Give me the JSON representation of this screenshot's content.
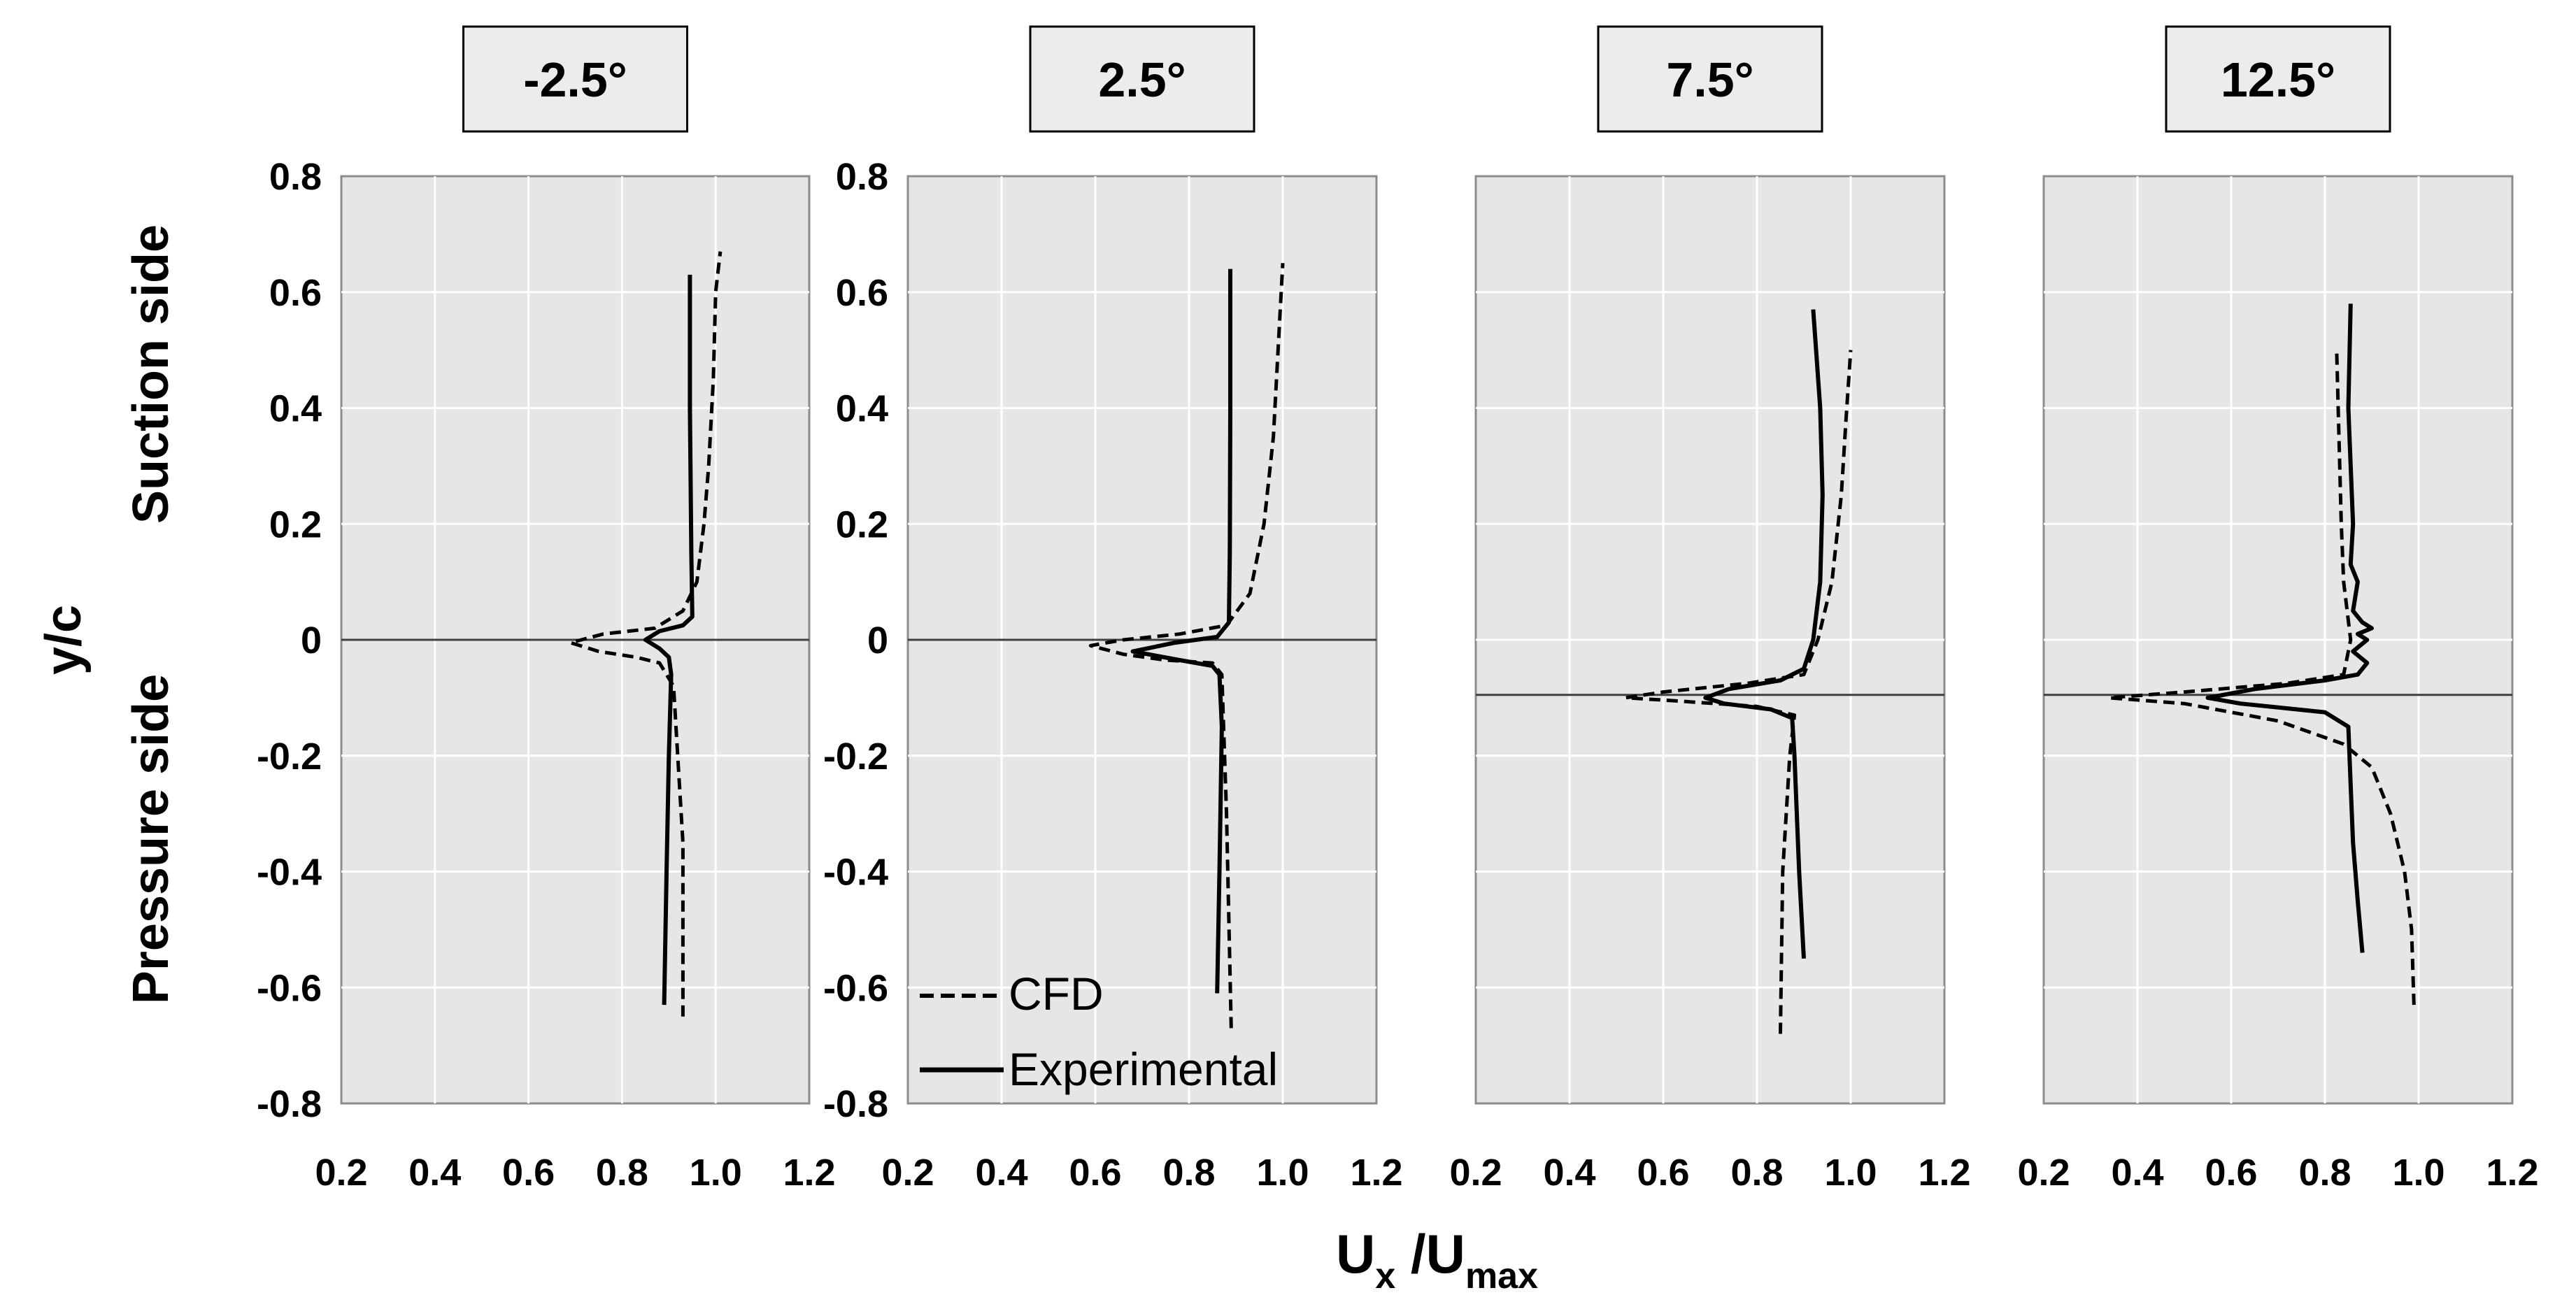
{
  "figure": {
    "xlabel_main": "U",
    "xlabel_sub1": "x",
    "xlabel_sep": " /U",
    "xlabel_sub2": "max",
    "ylabel": "y/c",
    "suction_label": "Suction side",
    "pressure_label": "Pressure side",
    "legend": {
      "cfd": "CFD",
      "exp": "Experimental"
    },
    "colors": {
      "plot_bg": "#e6e6e6",
      "grid": "#ffffff",
      "line": "#000000",
      "title_box": "#ececec",
      "frame": "#8c8c8c"
    }
  },
  "chart_data": [
    {
      "type": "line",
      "title": "-2.5°",
      "xlabel": "Ux /Umax",
      "ylabel": "y/c",
      "xlim": [
        0.2,
        1.2
      ],
      "ylim": [
        -0.8,
        0.8
      ],
      "xticks": [
        "0.2",
        "0.4",
        "0.6",
        "0.8",
        "1.0",
        "1.2"
      ],
      "yticks": [
        "0.8",
        "0.6",
        "0.4",
        "0.2",
        "0",
        "-0.2",
        "-0.4",
        "-0.6",
        "-0.8"
      ],
      "wake_line_y": 0.0,
      "series": [
        {
          "name": "CFD",
          "style": "dashed",
          "x": [
            0.93,
            0.93,
            0.91,
            0.88,
            0.83,
            0.75,
            0.69,
            0.76,
            0.87,
            0.93,
            0.96,
            0.975,
            0.985,
            0.995,
            1.0,
            1.01
          ],
          "y": [
            -0.65,
            -0.35,
            -0.08,
            -0.04,
            -0.03,
            -0.02,
            -0.005,
            0.01,
            0.02,
            0.05,
            0.1,
            0.2,
            0.3,
            0.45,
            0.6,
            0.67
          ]
        },
        {
          "name": "Experimental",
          "style": "solid",
          "x": [
            0.89,
            0.895,
            0.9,
            0.905,
            0.9,
            0.88,
            0.85,
            0.88,
            0.93,
            0.95,
            0.948,
            0.945,
            0.945
          ],
          "y": [
            -0.63,
            -0.4,
            -0.2,
            -0.06,
            -0.03,
            -0.015,
            0.0,
            0.015,
            0.025,
            0.04,
            0.15,
            0.4,
            0.63
          ]
        }
      ]
    },
    {
      "type": "line",
      "title": "2.5°",
      "xlabel": "Ux /Umax",
      "ylabel": "y/c",
      "xlim": [
        0.2,
        1.2
      ],
      "ylim": [
        -0.8,
        0.8
      ],
      "xticks": [
        "0.2",
        "0.4",
        "0.6",
        "0.8",
        "1.0",
        "1.2"
      ],
      "yticks": [
        "0.8",
        "0.6",
        "0.4",
        "0.2",
        "0",
        "-0.2",
        "-0.4",
        "-0.6",
        "-0.8"
      ],
      "wake_line_y": 0.0,
      "legend": [
        "CFD",
        "Experimental"
      ],
      "legend_position": "bottom-left",
      "series": [
        {
          "name": "CFD",
          "style": "dashed",
          "x": [
            0.89,
            0.88,
            0.87,
            0.85,
            0.75,
            0.66,
            0.59,
            0.66,
            0.78,
            0.88,
            0.93,
            0.96,
            0.98,
            0.99,
            1.0
          ],
          "y": [
            -0.67,
            -0.3,
            -0.06,
            -0.04,
            -0.035,
            -0.025,
            -0.01,
            0.0,
            0.01,
            0.025,
            0.08,
            0.2,
            0.35,
            0.5,
            0.65
          ]
        },
        {
          "name": "Experimental",
          "style": "solid",
          "x": [
            0.86,
            0.865,
            0.87,
            0.865,
            0.85,
            0.78,
            0.68,
            0.77,
            0.86,
            0.885,
            0.887,
            0.888,
            0.888
          ],
          "y": [
            -0.61,
            -0.4,
            -0.15,
            -0.06,
            -0.045,
            -0.035,
            -0.02,
            -0.005,
            0.005,
            0.03,
            0.15,
            0.4,
            0.64
          ]
        }
      ]
    },
    {
      "type": "line",
      "title": "7.5°",
      "xlabel": "Ux /Umax",
      "ylabel": "y/c",
      "xlim": [
        0.2,
        1.2
      ],
      "ylim": [
        -0.8,
        0.8
      ],
      "xticks": [
        "0.2",
        "0.4",
        "0.6",
        "0.8",
        "1.0",
        "1.2"
      ],
      "yticks": [],
      "wake_line_y": -0.095,
      "series": [
        {
          "name": "CFD",
          "style": "dashed",
          "x": [
            0.85,
            0.855,
            0.87,
            0.88,
            0.8,
            0.62,
            0.52,
            0.6,
            0.78,
            0.9,
            0.93,
            0.96,
            0.98,
            0.99,
            1.0
          ],
          "y": [
            -0.68,
            -0.4,
            -0.2,
            -0.13,
            -0.115,
            -0.105,
            -0.1,
            -0.09,
            -0.075,
            -0.06,
            0.0,
            0.1,
            0.25,
            0.38,
            0.5
          ]
        },
        {
          "name": "Experimental",
          "style": "solid",
          "x": [
            0.9,
            0.89,
            0.88,
            0.875,
            0.83,
            0.73,
            0.69,
            0.74,
            0.85,
            0.9,
            0.92,
            0.935,
            0.94,
            0.935,
            0.92
          ],
          "y": [
            -0.55,
            -0.4,
            -0.2,
            -0.135,
            -0.12,
            -0.11,
            -0.1,
            -0.085,
            -0.07,
            -0.05,
            0.0,
            0.1,
            0.25,
            0.4,
            0.57
          ]
        }
      ]
    },
    {
      "type": "line",
      "title": "12.5°",
      "xlabel": "Ux /Umax",
      "ylabel": "y/c",
      "xlim": [
        0.2,
        1.2
      ],
      "ylim": [
        -0.8,
        0.8
      ],
      "xticks": [
        "0.2",
        "0.4",
        "0.6",
        "0.8",
        "1.0",
        "1.2"
      ],
      "yticks": [],
      "wake_line_y": -0.095,
      "series": [
        {
          "name": "CFD",
          "style": "dashed",
          "x": [
            0.99,
            0.985,
            0.97,
            0.94,
            0.9,
            0.84,
            0.7,
            0.5,
            0.34,
            0.5,
            0.72,
            0.84,
            0.855,
            0.84,
            0.835,
            0.83,
            0.825
          ],
          "y": [
            -0.63,
            -0.5,
            -0.4,
            -0.3,
            -0.22,
            -0.18,
            -0.14,
            -0.11,
            -0.1,
            -0.09,
            -0.075,
            -0.06,
            0.0,
            0.1,
            0.2,
            0.35,
            0.5
          ]
        },
        {
          "name": "Experimental",
          "style": "solid",
          "x": [
            0.88,
            0.87,
            0.86,
            0.855,
            0.85,
            0.8,
            0.62,
            0.55,
            0.65,
            0.8,
            0.87,
            0.89,
            0.86,
            0.89,
            0.87,
            0.9,
            0.88,
            0.86,
            0.87,
            0.855,
            0.86,
            0.85,
            0.855
          ],
          "y": [
            -0.54,
            -0.45,
            -0.35,
            -0.25,
            -0.15,
            -0.125,
            -0.11,
            -0.1,
            -0.085,
            -0.07,
            -0.06,
            -0.04,
            -0.02,
            0.0,
            0.01,
            0.02,
            0.03,
            0.05,
            0.1,
            0.13,
            0.2,
            0.4,
            0.58
          ]
        }
      ]
    }
  ]
}
